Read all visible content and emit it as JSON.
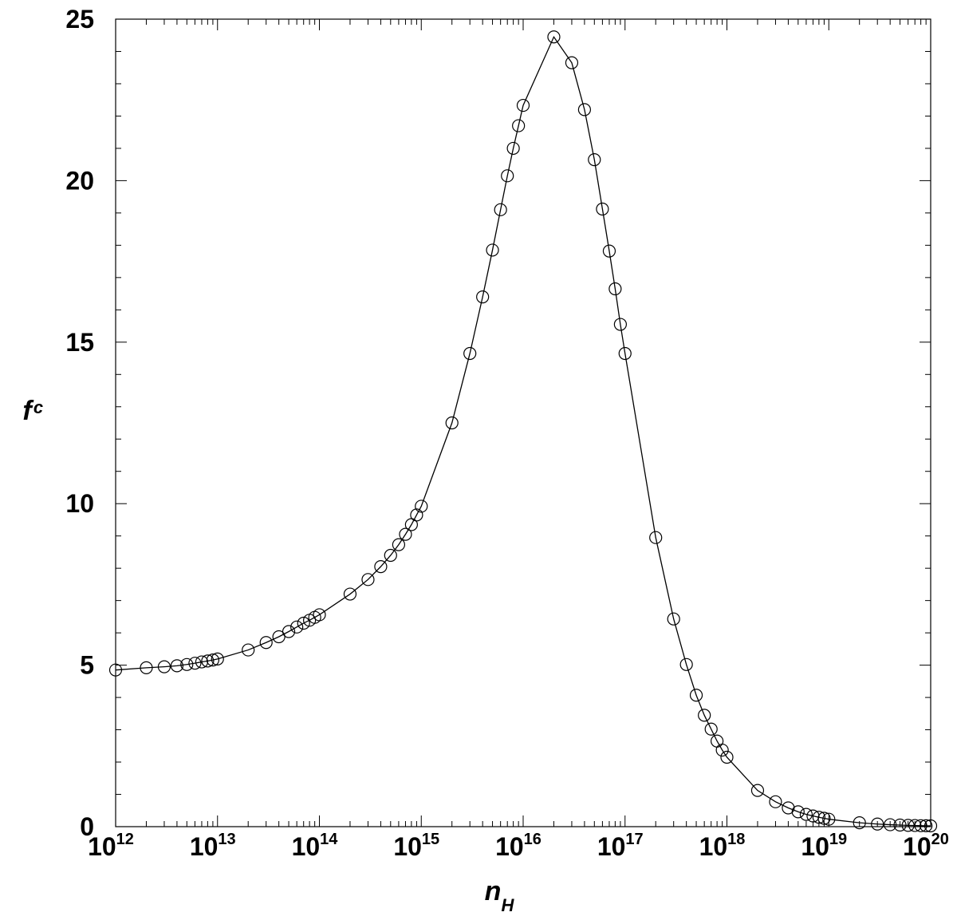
{
  "chart_data": {
    "type": "scatter",
    "title": "",
    "xlabel": {
      "main": "n",
      "sub": "H"
    },
    "ylabel": {
      "main": "f",
      "sub": "c"
    },
    "x_scale": "log",
    "xlim": [
      1000000000000.0,
      1e+20
    ],
    "ylim": [
      0,
      25
    ],
    "x_ticks": [
      {
        "base": "10",
        "exp": "12",
        "value": 1000000000000.0
      },
      {
        "base": "10",
        "exp": "13",
        "value": 10000000000000.0
      },
      {
        "base": "10",
        "exp": "14",
        "value": 100000000000000.0
      },
      {
        "base": "10",
        "exp": "15",
        "value": 1000000000000000.0
      },
      {
        "base": "10",
        "exp": "16",
        "value": 1e+16
      },
      {
        "base": "10",
        "exp": "17",
        "value": 1e+17
      },
      {
        "base": "10",
        "exp": "18",
        "value": 1e+18
      },
      {
        "base": "10",
        "exp": "19",
        "value": 1e+19
      },
      {
        "base": "10",
        "exp": "20",
        "value": 1e+20
      }
    ],
    "y_ticks": [
      "0",
      "5",
      "10",
      "15",
      "20",
      "25"
    ],
    "grid": false,
    "legend": "none",
    "series": [
      {
        "marker": "open-circle",
        "line": "solid",
        "color": "#000000",
        "points": [
          [
            1000000000000.0,
            4.85
          ],
          [
            2000000000000.0,
            4.92
          ],
          [
            3000000000000.0,
            4.95
          ],
          [
            4000000000000.0,
            4.98
          ],
          [
            5000000000000.0,
            5.02
          ],
          [
            6000000000000.0,
            5.06
          ],
          [
            7000000000000.0,
            5.1
          ],
          [
            8000000000000.0,
            5.13
          ],
          [
            9000000000000.0,
            5.16
          ],
          [
            10000000000000.0,
            5.19
          ],
          [
            20000000000000.0,
            5.47
          ],
          [
            30000000000000.0,
            5.7
          ],
          [
            40000000000000.0,
            5.88
          ],
          [
            50000000000000.0,
            6.04
          ],
          [
            60000000000000.0,
            6.18
          ],
          [
            70000000000000.0,
            6.3
          ],
          [
            80000000000000.0,
            6.39
          ],
          [
            90000000000000.0,
            6.48
          ],
          [
            100000000000000.0,
            6.56
          ],
          [
            200000000000000.0,
            7.2
          ],
          [
            300000000000000.0,
            7.65
          ],
          [
            400000000000000.0,
            8.05
          ],
          [
            500000000000000.0,
            8.4
          ],
          [
            600000000000000.0,
            8.73
          ],
          [
            700000000000000.0,
            9.05
          ],
          [
            800000000000000.0,
            9.35
          ],
          [
            900000000000000.0,
            9.65
          ],
          [
            1000000000000000.0,
            9.92
          ],
          [
            2000000000000000.0,
            12.5
          ],
          [
            3000000000000000.0,
            14.65
          ],
          [
            4000000000000000.0,
            16.4
          ],
          [
            5000000000000000.0,
            17.85
          ],
          [
            6000000000000000.0,
            19.1
          ],
          [
            7000000000000000.0,
            20.15
          ],
          [
            8000000000000000.0,
            21.0
          ],
          [
            9000000000000000.0,
            21.7
          ],
          [
            1e+16,
            22.33
          ],
          [
            2e+16,
            24.45
          ],
          [
            3e+16,
            23.65
          ],
          [
            4e+16,
            22.2
          ],
          [
            5e+16,
            20.65
          ],
          [
            6e+16,
            19.12
          ],
          [
            7e+16,
            17.82
          ],
          [
            8e+16,
            16.65
          ],
          [
            9e+16,
            15.55
          ],
          [
            1e+17,
            14.65
          ],
          [
            2e+17,
            8.95
          ],
          [
            3e+17,
            6.43
          ],
          [
            4e+17,
            5.02
          ],
          [
            5e+17,
            4.07
          ],
          [
            6e+17,
            3.45
          ],
          [
            7e+17,
            3.02
          ],
          [
            8e+17,
            2.65
          ],
          [
            9e+17,
            2.37
          ],
          [
            1e+18,
            2.15
          ],
          [
            2e+18,
            1.12
          ],
          [
            3e+18,
            0.77
          ],
          [
            4e+18,
            0.58
          ],
          [
            5e+18,
            0.46
          ],
          [
            6e+18,
            0.38
          ],
          [
            7e+18,
            0.33
          ],
          [
            8e+18,
            0.29
          ],
          [
            9e+18,
            0.26
          ],
          [
            1e+19,
            0.23
          ],
          [
            2e+19,
            0.12
          ],
          [
            3e+19,
            0.08
          ],
          [
            4e+19,
            0.06
          ],
          [
            5e+19,
            0.05
          ],
          [
            6e+19,
            0.04
          ],
          [
            7e+19,
            0.035
          ],
          [
            8e+19,
            0.03
          ],
          [
            9e+19,
            0.027
          ],
          [
            1e+20,
            0.025
          ]
        ]
      }
    ]
  }
}
